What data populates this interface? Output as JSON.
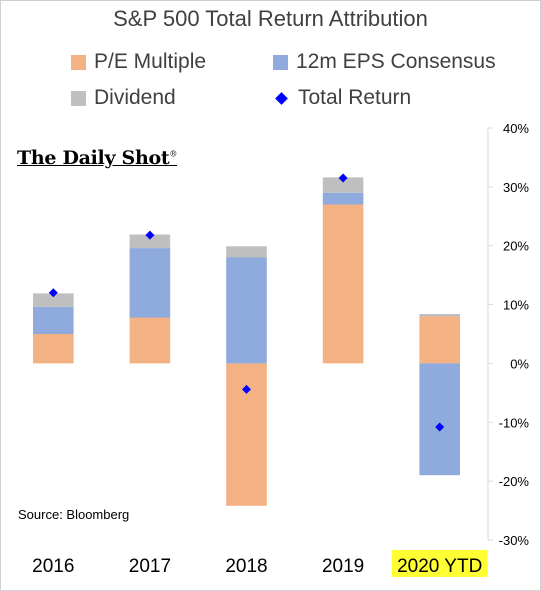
{
  "title": "S&P 500 Total Return Attribution",
  "legend": [
    {
      "label": "P/E Multiple",
      "key": "pe",
      "marker": "square"
    },
    {
      "label": "12m EPS Consensus",
      "key": "eps",
      "marker": "square"
    },
    {
      "label": "Dividend",
      "key": "div",
      "marker": "square"
    },
    {
      "label": "Total Return",
      "key": "total",
      "marker": "diamond"
    }
  ],
  "watermark": "The Daily Shot",
  "watermark_mark": "®",
  "source": "Source: Bloomberg",
  "colors": {
    "pe": "#f4b183",
    "eps": "#8faadc",
    "div": "#bfbfbf",
    "total": "#0000ff",
    "highlight": "#ffff33"
  },
  "chart_data": {
    "type": "bar",
    "stacked": true,
    "categories": [
      "2016",
      "2017",
      "2018",
      "2019",
      "2020 YTD"
    ],
    "highlighted_category": "2020 YTD",
    "series": [
      {
        "name": "P/E Multiple",
        "key": "pe",
        "values": [
          5.0,
          7.8,
          -24.2,
          27.0,
          8.0
        ]
      },
      {
        "name": "12m EPS Consensus",
        "key": "eps",
        "values": [
          4.6,
          11.8,
          18.0,
          2.0,
          -19.0
        ]
      },
      {
        "name": "Dividend",
        "key": "div",
        "values": [
          2.3,
          2.3,
          1.9,
          2.6,
          0.4
        ]
      }
    ],
    "total_return": {
      "name": "Total Return",
      "values": [
        12.0,
        21.8,
        -4.4,
        31.5,
        -10.8
      ]
    },
    "yticks": [
      -30,
      -20,
      -10,
      0,
      10,
      20,
      30,
      40
    ],
    "ytick_labels": [
      "-30%",
      "-20%",
      "-10%",
      "0%",
      "10%",
      "20%",
      "30%",
      "40%"
    ],
    "ylim": [
      -30,
      40
    ],
    "grid": false,
    "legend_position": "top"
  }
}
